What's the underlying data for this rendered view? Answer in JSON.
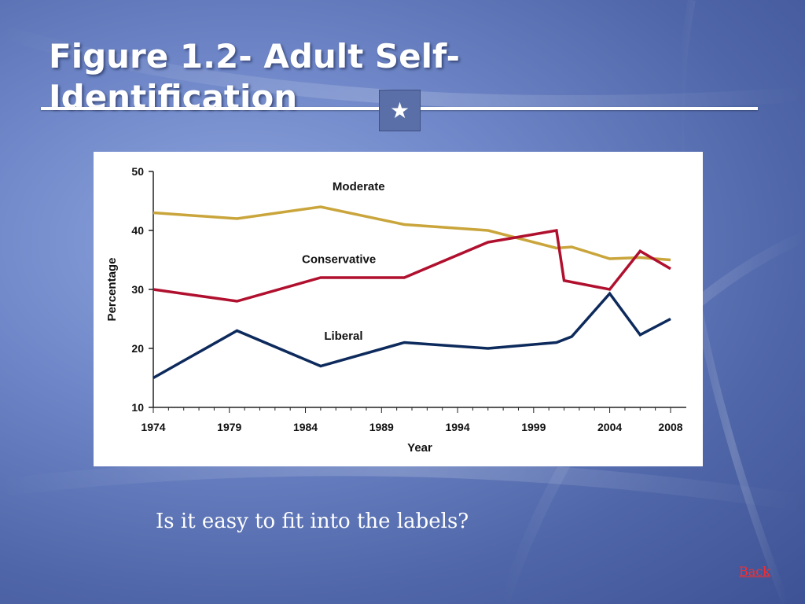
{
  "slide": {
    "title": "Figure 1.2- Adult Self-Identification",
    "star_icon": "★",
    "caption": "Is it easy to fit into the labels?",
    "back_label": "Back"
  },
  "colors": {
    "moderate": "#c9a53b",
    "conservative": "#b0102e",
    "liberal": "#0d2a5c",
    "link": "#ff2a2a"
  },
  "chart_data": {
    "type": "line",
    "title": "",
    "xlabel": "Year",
    "ylabel": "Percentage",
    "xlim": [
      1974,
      2008
    ],
    "ylim": [
      10,
      50
    ],
    "xticks": [
      "1974",
      "1979",
      "1984",
      "1989",
      "1994",
      "1999",
      "2004",
      "2008"
    ],
    "yticks": [
      "10",
      "20",
      "30",
      "40",
      "50"
    ],
    "grid": false,
    "series": [
      {
        "name": "Moderate",
        "color": "#c9a53b",
        "x": [
          1974,
          1979.5,
          1985,
          1990.5,
          1996,
          2000.5,
          2001.5,
          2004,
          2006,
          2008
        ],
        "y": [
          43,
          42,
          44,
          41,
          40,
          37,
          37.2,
          35.2,
          35.4,
          35
        ]
      },
      {
        "name": "Conservative",
        "color": "#b0102e",
        "x": [
          1974,
          1979.5,
          1985,
          1990.5,
          1996,
          2000.5,
          2001,
          2004,
          2006,
          2008
        ],
        "y": [
          30,
          28,
          32,
          32,
          38,
          40,
          31.5,
          30,
          36.5,
          33.5
        ]
      },
      {
        "name": "Liberal",
        "color": "#0d2a5c",
        "x": [
          1974,
          1979.5,
          1985,
          1990.5,
          1996,
          2000.5,
          2001.5,
          2004,
          2006,
          2008
        ],
        "y": [
          15,
          23,
          17,
          21,
          20,
          21,
          22,
          29.3,
          22.3,
          25
        ]
      }
    ],
    "series_labels": [
      {
        "text": "Moderate",
        "x": 1987.5,
        "y": 46.8
      },
      {
        "text": "Conservative",
        "x": 1986.2,
        "y": 34.5
      },
      {
        "text": "Liberal",
        "x": 1986.5,
        "y": 21.5
      }
    ]
  }
}
